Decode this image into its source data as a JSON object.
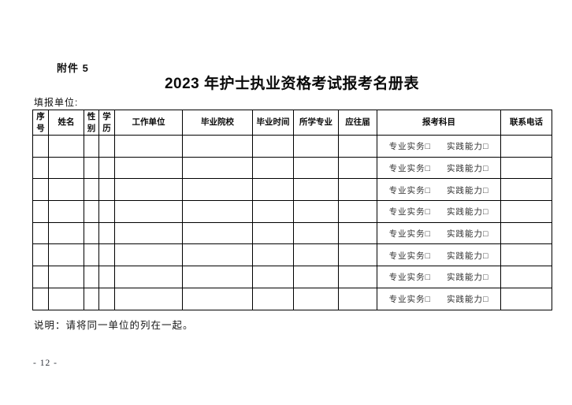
{
  "page": {
    "attachment": "附件 5",
    "title": "2023 年护士执业资格考试报考名册表",
    "fill_unit_label": "填报单位:",
    "note": "说明：请将同一单位的列在一起。",
    "page_number": "- 12 -"
  },
  "table": {
    "columns": [
      {
        "key": "index",
        "label": "序号"
      },
      {
        "key": "name",
        "label": "姓名"
      },
      {
        "key": "gender",
        "label": "性别"
      },
      {
        "key": "education",
        "label": "学历"
      },
      {
        "key": "work_unit",
        "label": "工作单位"
      },
      {
        "key": "school",
        "label": "毕业院校"
      },
      {
        "key": "grad_time",
        "label": "毕业时间"
      },
      {
        "key": "major",
        "label": "所学专业"
      },
      {
        "key": "grad_status",
        "label": "应往届"
      },
      {
        "key": "subjects",
        "label": "报考科目"
      },
      {
        "key": "phone",
        "label": "联系电话"
      }
    ],
    "subject_options": [
      "专业实务",
      "实践能力"
    ],
    "checkbox_char": "□",
    "row_count": 8
  }
}
